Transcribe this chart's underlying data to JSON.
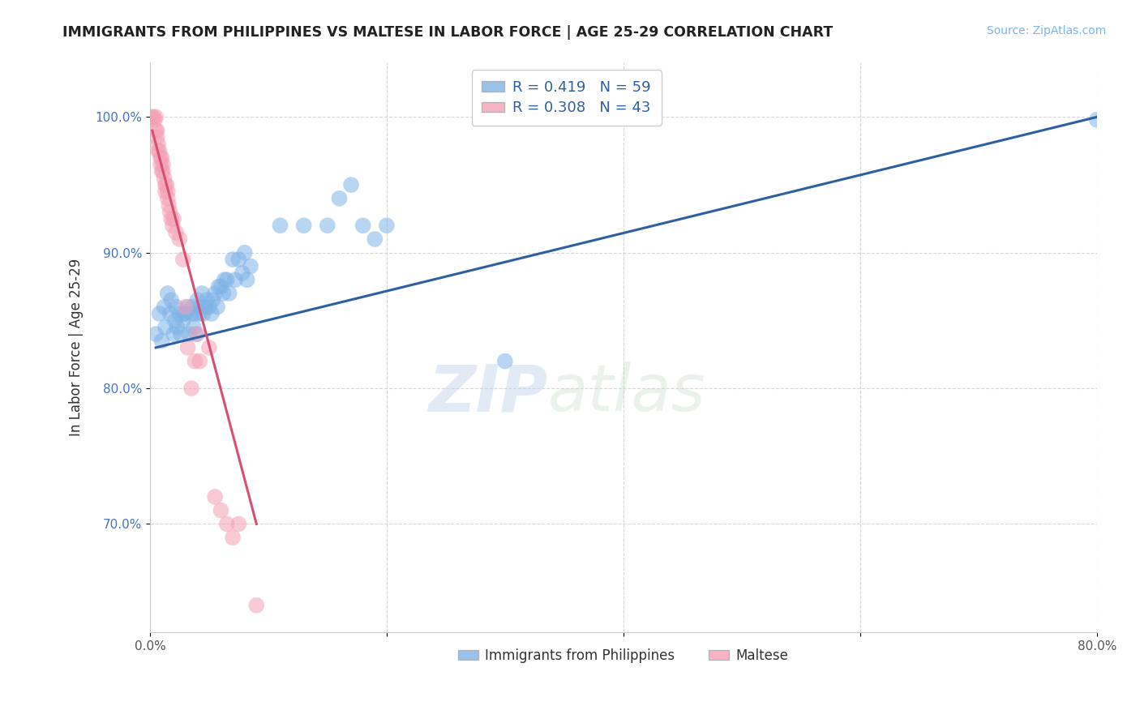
{
  "title": "IMMIGRANTS FROM PHILIPPINES VS MALTESE IN LABOR FORCE | AGE 25-29 CORRELATION CHART",
  "source": "Source: ZipAtlas.com",
  "ylabel": "In Labor Force | Age 25-29",
  "xlim": [
    0.0,
    0.8
  ],
  "ylim": [
    0.62,
    1.04
  ],
  "xticks": [
    0.0,
    0.2,
    0.4,
    0.6,
    0.8
  ],
  "xticklabels": [
    "0.0%",
    "",
    "",
    "",
    "80.0%"
  ],
  "yticks": [
    0.7,
    0.8,
    0.9,
    1.0
  ],
  "yticklabels": [
    "70.0%",
    "80.0%",
    "90.0%",
    "100.0%"
  ],
  "blue_R": "0.419",
  "blue_N": "59",
  "pink_R": "0.308",
  "pink_N": "43",
  "blue_color": "#7EB3E8",
  "pink_color": "#F4A0B5",
  "blue_line_color": "#2E5FA3",
  "pink_line_color": "#D94F70",
  "watermark_zip": "ZIP",
  "watermark_atlas": "atlas",
  "grid_color": "#CCCCCC",
  "blue_scatter_x": [
    0.005,
    0.008,
    0.01,
    0.012,
    0.013,
    0.015,
    0.017,
    0.018,
    0.02,
    0.021,
    0.022,
    0.023,
    0.025,
    0.026,
    0.028,
    0.029,
    0.03,
    0.032,
    0.033,
    0.035,
    0.036,
    0.037,
    0.038,
    0.039,
    0.04,
    0.042,
    0.043,
    0.044,
    0.045,
    0.047,
    0.048,
    0.05,
    0.052,
    0.053,
    0.055,
    0.057,
    0.058,
    0.06,
    0.062,
    0.063,
    0.065,
    0.067,
    0.07,
    0.072,
    0.075,
    0.078,
    0.08,
    0.082,
    0.085,
    0.11,
    0.13,
    0.15,
    0.16,
    0.17,
    0.18,
    0.19,
    0.2,
    0.3,
    0.8
  ],
  "blue_scatter_y": [
    0.84,
    0.855,
    0.835,
    0.86,
    0.845,
    0.87,
    0.855,
    0.865,
    0.84,
    0.85,
    0.86,
    0.845,
    0.855,
    0.84,
    0.85,
    0.855,
    0.855,
    0.86,
    0.84,
    0.855,
    0.86,
    0.845,
    0.855,
    0.84,
    0.865,
    0.855,
    0.86,
    0.87,
    0.855,
    0.86,
    0.865,
    0.86,
    0.855,
    0.865,
    0.87,
    0.86,
    0.875,
    0.875,
    0.87,
    0.88,
    0.88,
    0.87,
    0.895,
    0.88,
    0.895,
    0.885,
    0.9,
    0.88,
    0.89,
    0.92,
    0.92,
    0.92,
    0.94,
    0.95,
    0.92,
    0.91,
    0.92,
    0.82,
    0.998
  ],
  "pink_scatter_x": [
    0.002,
    0.003,
    0.004,
    0.005,
    0.005,
    0.006,
    0.006,
    0.007,
    0.007,
    0.008,
    0.009,
    0.009,
    0.01,
    0.01,
    0.011,
    0.011,
    0.012,
    0.013,
    0.013,
    0.014,
    0.015,
    0.015,
    0.016,
    0.017,
    0.018,
    0.019,
    0.02,
    0.022,
    0.025,
    0.028,
    0.03,
    0.032,
    0.035,
    0.038,
    0.04,
    0.042,
    0.05,
    0.055,
    0.06,
    0.065,
    0.07,
    0.075,
    0.09
  ],
  "pink_scatter_y": [
    1.0,
    1.0,
    0.998,
    1.0,
    0.99,
    0.99,
    0.985,
    0.98,
    0.975,
    0.975,
    0.97,
    0.965,
    0.97,
    0.96,
    0.965,
    0.96,
    0.955,
    0.95,
    0.945,
    0.95,
    0.945,
    0.94,
    0.935,
    0.93,
    0.925,
    0.92,
    0.925,
    0.915,
    0.91,
    0.895,
    0.86,
    0.83,
    0.8,
    0.82,
    0.84,
    0.82,
    0.83,
    0.72,
    0.71,
    0.7,
    0.69,
    0.7,
    0.64
  ],
  "blue_line_x": [
    0.005,
    0.8
  ],
  "blue_line_y": [
    0.83,
    1.0
  ],
  "pink_line_x": [
    0.002,
    0.09
  ],
  "pink_line_y": [
    0.99,
    0.7
  ]
}
